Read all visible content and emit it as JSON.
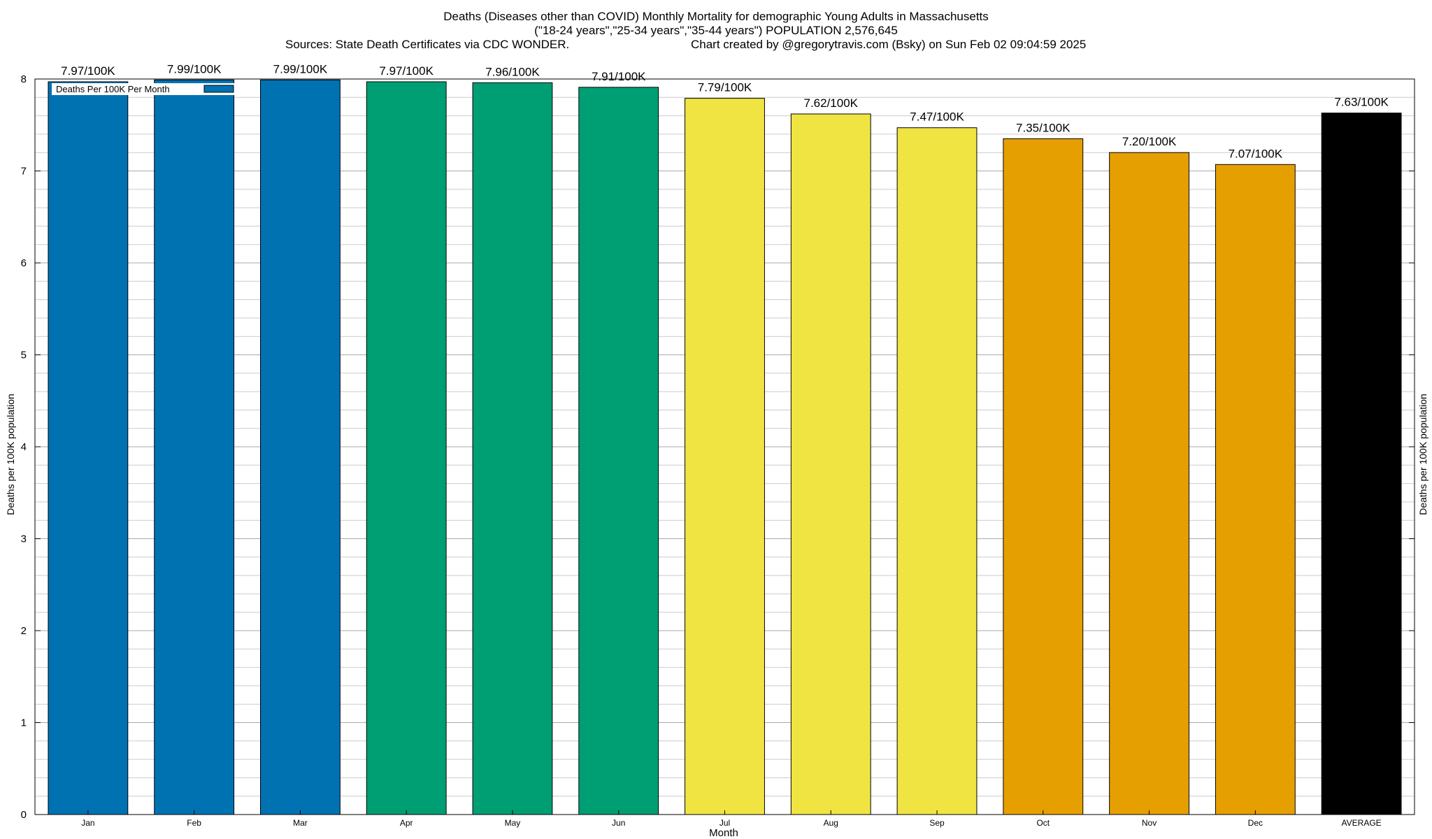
{
  "chart_data": {
    "type": "bar",
    "title": "Deaths (Diseases other than COVID) Monthly Mortality for demographic Young Adults in Massachusetts",
    "subtitle": "(\"18-24 years\",\"25-34 years\",\"35-44 years\") POPULATION 2,576,645",
    "sources": "Sources: State Death Certificates via CDC WONDER.",
    "credit": "Chart created by @gregorytravis.com (Bsky) on Sun Feb 02 09:04:59 2025",
    "xlabel": "Month",
    "ylabel": "Deaths per 100K population",
    "y2label": "Deaths per 100K population",
    "legend": {
      "label": "Deaths Per 100K Per Month",
      "position": "top-left"
    },
    "categories": [
      "Jan",
      "Feb",
      "Mar",
      "Apr",
      "May",
      "Jun",
      "Jul",
      "Aug",
      "Sep",
      "Oct",
      "Nov",
      "Dec",
      "AVERAGE"
    ],
    "values": [
      7.97,
      7.99,
      7.99,
      7.97,
      7.96,
      7.91,
      7.79,
      7.62,
      7.47,
      7.35,
      7.2,
      7.07,
      7.63
    ],
    "data_labels": [
      "7.97/100K",
      "7.99/100K",
      "7.99/100K",
      "7.97/100K",
      "7.96/100K",
      "7.91/100K",
      "7.79/100K",
      "7.62/100K",
      "7.47/100K",
      "7.35/100K",
      "7.20/100K",
      "7.07/100K",
      "7.63/100K"
    ],
    "colors": [
      "#0072b2",
      "#0072b2",
      "#0072b2",
      "#009e73",
      "#009e73",
      "#009e73",
      "#f0e442",
      "#f0e442",
      "#f0e442",
      "#e69f00",
      "#e69f00",
      "#e69f00",
      "#000000"
    ],
    "ylim": [
      0,
      8
    ],
    "yticks": [
      0,
      1,
      2,
      3,
      4,
      5,
      6,
      7,
      8
    ],
    "grid": true
  }
}
